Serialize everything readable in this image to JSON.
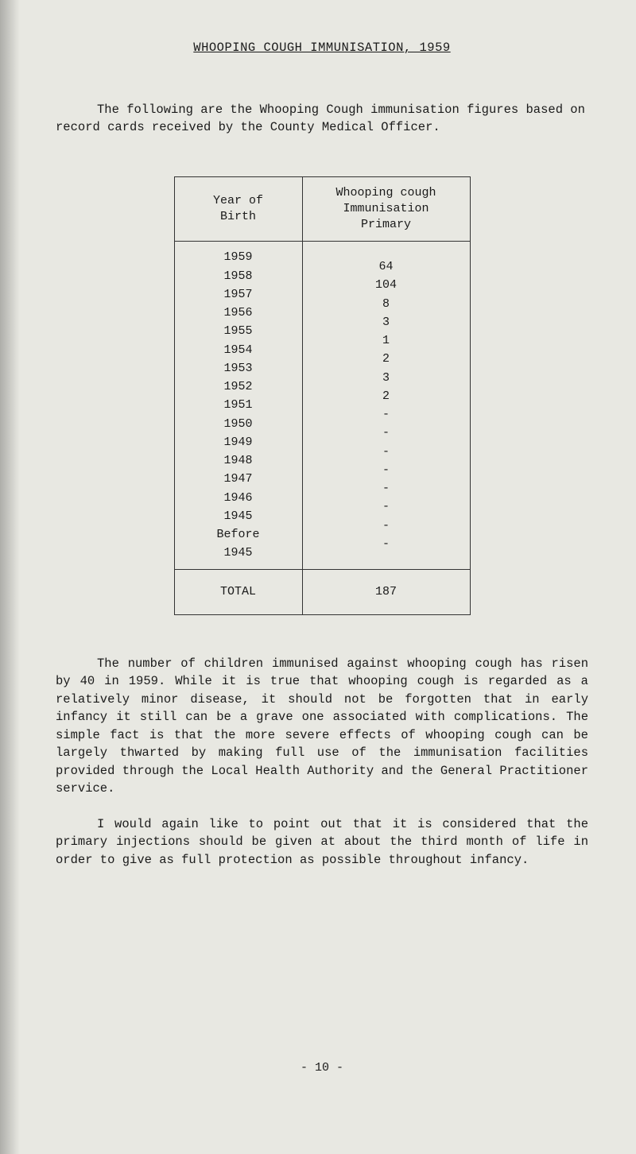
{
  "title": "WHOOPING COUGH IMMUNISATION, 1959",
  "intro": "The following are the Whooping Cough immunisation figures based on record cards received by the County Medical Officer.",
  "table": {
    "header_left": "Year of\nBirth",
    "header_right": "Whooping cough\nImmunisation\nPrimary",
    "rows": [
      {
        "year": "1959",
        "count": "64"
      },
      {
        "year": "1958",
        "count": "104"
      },
      {
        "year": "1957",
        "count": "8"
      },
      {
        "year": "1956",
        "count": "3"
      },
      {
        "year": "1955",
        "count": "1"
      },
      {
        "year": "1954",
        "count": "2"
      },
      {
        "year": "1953",
        "count": "3"
      },
      {
        "year": "1952",
        "count": "2"
      },
      {
        "year": "1951",
        "count": "-"
      },
      {
        "year": "1950",
        "count": "-"
      },
      {
        "year": "1949",
        "count": "-"
      },
      {
        "year": "1948",
        "count": "-"
      },
      {
        "year": "1947",
        "count": "-"
      },
      {
        "year": "1946",
        "count": "-"
      },
      {
        "year": "1945",
        "count": "-"
      },
      {
        "year": "Before",
        "count": ""
      },
      {
        "year": "1945",
        "count": "-"
      }
    ],
    "total_label": "TOTAL",
    "total_value": "187"
  },
  "para1": "The number of children immunised against whooping cough has risen by 40 in 1959.  While it is true that whooping cough is regarded as a relatively minor disease, it should not be forgotten that in early infancy it still can be a grave one associated with complications.  The simple fact is that the more severe effects of whooping cough can be largely thwarted by making full use of the immunisation facilities provided through the Local Health Authority and the General Practitioner service.",
  "para2": "I would again like to point out that it is considered that the primary injections should be given at about the third month of life in order to give as full protection as possible throughout infancy.",
  "page_num": "- 10 -",
  "colors": {
    "background": "#e8e8e2",
    "text": "#1a1a1a",
    "border": "#333333"
  }
}
